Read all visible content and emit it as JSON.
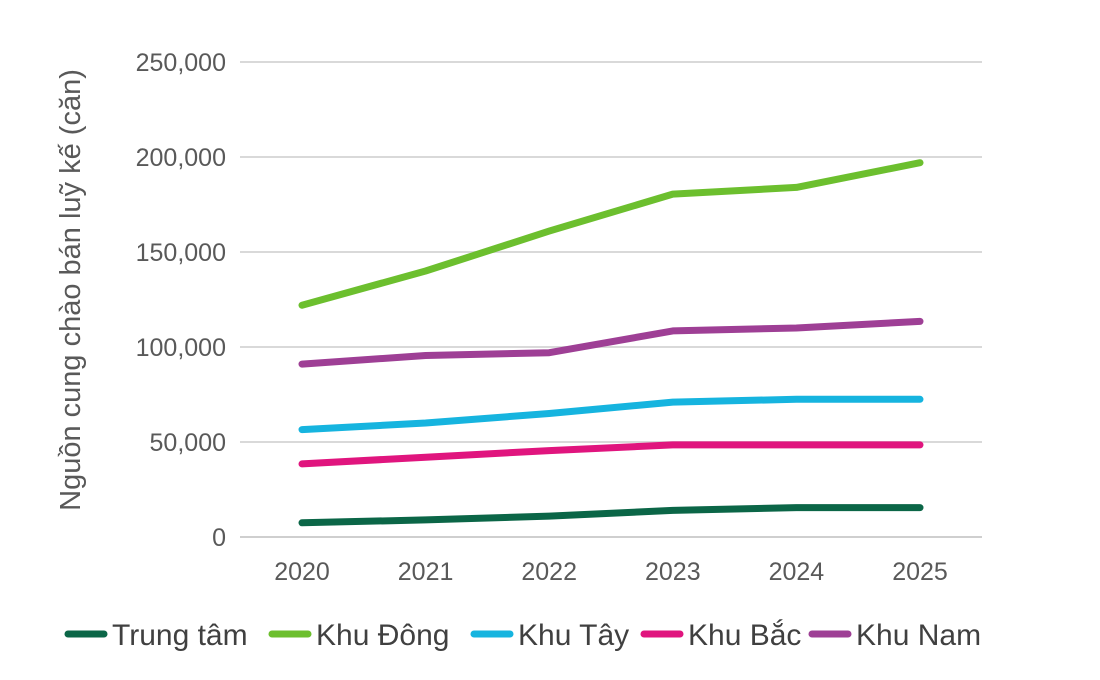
{
  "chart_data": {
    "type": "line",
    "title": "",
    "xlabel": "",
    "ylabel": "Nguồn cung chào bán luỹ kế (căn)",
    "x": [
      "2020",
      "2021",
      "2022",
      "2023",
      "2024",
      "2025"
    ],
    "ylim": [
      0,
      250000
    ],
    "yticks": [
      0,
      50000,
      100000,
      150000,
      200000,
      250000
    ],
    "ytick_labels": [
      "0",
      "50,000",
      "100,000",
      "150,000",
      "200,000",
      "250,000"
    ],
    "grid": "horizontal",
    "legend_position": "bottom",
    "series": [
      {
        "name": "Trung tâm",
        "color": "#0b6647",
        "values": [
          7500,
          9000,
          11000,
          14000,
          15500,
          15500
        ]
      },
      {
        "name": "Khu Đông",
        "color": "#6cbf2e",
        "values": [
          122000,
          140000,
          161000,
          180500,
          184000,
          197000
        ]
      },
      {
        "name": "Khu Tây",
        "color": "#16b4df",
        "values": [
          56500,
          60000,
          65000,
          71000,
          72500,
          72500
        ]
      },
      {
        "name": "Khu Bắc",
        "color": "#e0157e",
        "values": [
          38500,
          42000,
          45500,
          48500,
          48500,
          48500
        ]
      },
      {
        "name": "Khu Nam",
        "color": "#9e3f95",
        "values": [
          91000,
          95500,
          97000,
          108500,
          110000,
          113500
        ]
      }
    ]
  }
}
